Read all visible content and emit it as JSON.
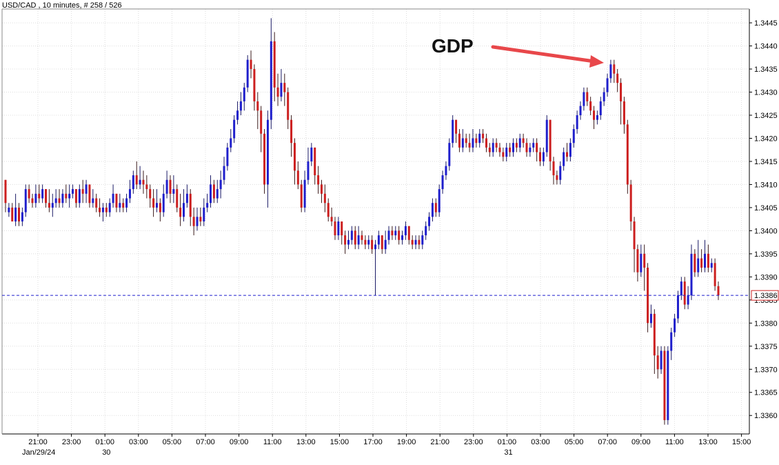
{
  "header": {
    "title": "USD/CAD , 10 minutes, # 258 / 526"
  },
  "annotation": {
    "label": "GDP",
    "arrow_color": "#e8474a"
  },
  "price_label": "1.3386",
  "colors": {
    "up": "#1f1fcc",
    "down": "#cc1f1f",
    "grid": "#dcdcdc",
    "axis": "#000000",
    "current_line": "#1f1fcc",
    "current_label": "#cc1f1f"
  },
  "chart_data": {
    "type": "candlestick",
    "title": "USD/CAD , 10 minutes, # 258 / 526",
    "xlabel": "",
    "ylabel": "",
    "ylim": [
      1.3356,
      1.3448
    ],
    "grid": true,
    "yticks": [
      "1.3445",
      "1.3440",
      "1.3435",
      "1.3430",
      "1.3425",
      "1.3420",
      "1.3415",
      "1.3410",
      "1.3405",
      "1.3400",
      "1.3395",
      "1.3390",
      "1.3385",
      "1.3380",
      "1.3375",
      "1.3370",
      "1.3365",
      "1.3360"
    ],
    "xticks": [
      "21:00",
      "23:00",
      "01:00",
      "03:00",
      "05:00",
      "07:00",
      "09:00",
      "11:00",
      "13:00",
      "15:00",
      "17:00",
      "19:00",
      "21:00",
      "23:00",
      "01:00",
      "03:00",
      "05:00",
      "07:00",
      "09:00",
      "11:00",
      "13:00",
      "15:00"
    ],
    "date_labels": [
      {
        "label": "Jan/29/24",
        "tick_index": 0
      },
      {
        "label": "30",
        "tick_index": 2
      },
      {
        "label": "31",
        "tick_index": 14
      }
    ],
    "current_price": 1.3386,
    "annotations": [
      {
        "text": "GDP",
        "points_to_time": "07:30"
      }
    ],
    "candles": [
      [
        1.3411,
        1.3406,
        1.3411,
        1.3404
      ],
      [
        1.3404,
        1.3405,
        1.3406,
        1.3403
      ],
      [
        1.3405,
        1.3402,
        1.3406,
        1.3402
      ],
      [
        1.3402,
        1.3405,
        1.3408,
        1.3401
      ],
      [
        1.3405,
        1.3402,
        1.3406,
        1.3401
      ],
      [
        1.3402,
        1.3404,
        1.3405,
        1.3401
      ],
      [
        1.3404,
        1.3409,
        1.341,
        1.3403
      ],
      [
        1.3409,
        1.3407,
        1.341,
        1.3406
      ],
      [
        1.3407,
        1.3406,
        1.3408,
        1.3405
      ],
      [
        1.3406,
        1.3408,
        1.341,
        1.3405
      ],
      [
        1.3408,
        1.3407,
        1.341,
        1.3406
      ],
      [
        1.3407,
        1.3409,
        1.341,
        1.3406
      ],
      [
        1.3409,
        1.3406,
        1.3409,
        1.3405
      ],
      [
        1.3406,
        1.3405,
        1.3409,
        1.3404
      ],
      [
        1.3405,
        1.3406,
        1.3408,
        1.3403
      ],
      [
        1.3406,
        1.3407,
        1.3409,
        1.3405
      ],
      [
        1.3407,
        1.3406,
        1.3409,
        1.3405
      ],
      [
        1.3406,
        1.3408,
        1.3409,
        1.3405
      ],
      [
        1.3408,
        1.3407,
        1.341,
        1.3406
      ],
      [
        1.3407,
        1.3408,
        1.341,
        1.3405
      ],
      [
        1.3408,
        1.3409,
        1.341,
        1.3407
      ],
      [
        1.3409,
        1.3406,
        1.3409,
        1.3405
      ],
      [
        1.3406,
        1.3409,
        1.341,
        1.3405
      ],
      [
        1.3409,
        1.3408,
        1.3411,
        1.3406
      ],
      [
        1.3408,
        1.341,
        1.3411,
        1.3406
      ],
      [
        1.341,
        1.3406,
        1.341,
        1.3405
      ],
      [
        1.3406,
        1.3407,
        1.3409,
        1.3405
      ],
      [
        1.3407,
        1.3405,
        1.3408,
        1.3404
      ],
      [
        1.3405,
        1.3404,
        1.3407,
        1.3403
      ],
      [
        1.3404,
        1.3405,
        1.3406,
        1.3402
      ],
      [
        1.3405,
        1.3404,
        1.3406,
        1.3403
      ],
      [
        1.3404,
        1.3406,
        1.3407,
        1.3403
      ],
      [
        1.3406,
        1.3408,
        1.341,
        1.3405
      ],
      [
        1.3408,
        1.3405,
        1.3408,
        1.3404
      ],
      [
        1.3405,
        1.3406,
        1.3408,
        1.3404
      ],
      [
        1.3406,
        1.3405,
        1.3407,
        1.3404
      ],
      [
        1.3405,
        1.3407,
        1.3408,
        1.3404
      ],
      [
        1.3407,
        1.3409,
        1.3411,
        1.3406
      ],
      [
        1.3409,
        1.3412,
        1.3413,
        1.3408
      ],
      [
        1.3412,
        1.341,
        1.3415,
        1.3409
      ],
      [
        1.341,
        1.3411,
        1.3414,
        1.3409
      ],
      [
        1.3411,
        1.341,
        1.3413,
        1.3408
      ],
      [
        1.341,
        1.3409,
        1.3412,
        1.3407
      ],
      [
        1.3409,
        1.3407,
        1.341,
        1.3405
      ],
      [
        1.3407,
        1.3405,
        1.3409,
        1.3403
      ],
      [
        1.3405,
        1.3406,
        1.3409,
        1.3404
      ],
      [
        1.3406,
        1.3404,
        1.3407,
        1.3402
      ],
      [
        1.3404,
        1.3408,
        1.341,
        1.3403
      ],
      [
        1.3408,
        1.3411,
        1.3413,
        1.3407
      ],
      [
        1.3411,
        1.3408,
        1.3412,
        1.3406
      ],
      [
        1.3408,
        1.3409,
        1.3412,
        1.3406
      ],
      [
        1.3409,
        1.3405,
        1.341,
        1.3404
      ],
      [
        1.3405,
        1.3403,
        1.3408,
        1.3401
      ],
      [
        1.3403,
        1.3406,
        1.3409,
        1.3402
      ],
      [
        1.3406,
        1.3408,
        1.341,
        1.3405
      ],
      [
        1.3408,
        1.3403,
        1.3409,
        1.3401
      ],
      [
        1.3403,
        1.3401,
        1.3405,
        1.3399
      ],
      [
        1.3401,
        1.3403,
        1.3405,
        1.34
      ],
      [
        1.3403,
        1.3402,
        1.3405,
        1.3401
      ],
      [
        1.3402,
        1.3405,
        1.3407,
        1.3401
      ],
      [
        1.3405,
        1.3406,
        1.3408,
        1.3404
      ],
      [
        1.3406,
        1.341,
        1.3412,
        1.3405
      ],
      [
        1.341,
        1.3407,
        1.3411,
        1.3406
      ],
      [
        1.3407,
        1.3409,
        1.3411,
        1.3406
      ],
      [
        1.3409,
        1.3411,
        1.3413,
        1.3407
      ],
      [
        1.3411,
        1.3414,
        1.3416,
        1.341
      ],
      [
        1.3414,
        1.3418,
        1.3419,
        1.3413
      ],
      [
        1.3418,
        1.342,
        1.3422,
        1.3417
      ],
      [
        1.342,
        1.3424,
        1.3425,
        1.3419
      ],
      [
        1.3424,
        1.3426,
        1.3428,
        1.3423
      ],
      [
        1.3426,
        1.3428,
        1.343,
        1.3425
      ],
      [
        1.3428,
        1.3431,
        1.3432,
        1.3426
      ],
      [
        1.3431,
        1.3437,
        1.3438,
        1.343
      ],
      [
        1.3437,
        1.3435,
        1.3439,
        1.3433
      ],
      [
        1.3435,
        1.3428,
        1.3436,
        1.3426
      ],
      [
        1.3428,
        1.3426,
        1.343,
        1.3422
      ],
      [
        1.3426,
        1.3421,
        1.3427,
        1.3417
      ],
      [
        1.3421,
        1.341,
        1.3422,
        1.3408
      ],
      [
        1.341,
        1.3424,
        1.3426,
        1.3405
      ],
      [
        1.3424,
        1.3441,
        1.3446,
        1.3422
      ],
      [
        1.3441,
        1.3431,
        1.3443,
        1.3428
      ],
      [
        1.3431,
        1.3429,
        1.3434,
        1.3427
      ],
      [
        1.3429,
        1.3432,
        1.3435,
        1.3428
      ],
      [
        1.3432,
        1.343,
        1.3434,
        1.3427
      ],
      [
        1.343,
        1.3424,
        1.3431,
        1.3422
      ],
      [
        1.3424,
        1.3419,
        1.3425,
        1.3416
      ],
      [
        1.3419,
        1.3413,
        1.342,
        1.341
      ],
      [
        1.3413,
        1.341,
        1.3415,
        1.3409
      ],
      [
        1.341,
        1.3405,
        1.3411,
        1.3404
      ],
      [
        1.3405,
        1.3411,
        1.3413,
        1.3404
      ],
      [
        1.3411,
        1.3415,
        1.3418,
        1.341
      ],
      [
        1.3415,
        1.3418,
        1.3419,
        1.3414
      ],
      [
        1.3418,
        1.3412,
        1.3418,
        1.341
      ],
      [
        1.3412,
        1.341,
        1.3414,
        1.3408
      ],
      [
        1.341,
        1.3408,
        1.3411,
        1.3406
      ],
      [
        1.3408,
        1.3406,
        1.341,
        1.3404
      ],
      [
        1.3406,
        1.3403,
        1.3407,
        1.3402
      ],
      [
        1.3403,
        1.3402,
        1.3405,
        1.3401
      ],
      [
        1.3402,
        1.3399,
        1.3403,
        1.3398
      ],
      [
        1.3399,
        1.3402,
        1.3403,
        1.3398
      ],
      [
        1.3402,
        1.3399,
        1.3402,
        1.3397
      ],
      [
        1.3399,
        1.3397,
        1.34,
        1.3395
      ],
      [
        1.3397,
        1.3398,
        1.34,
        1.3396
      ],
      [
        1.3398,
        1.34,
        1.3401,
        1.3397
      ],
      [
        1.34,
        1.3397,
        1.3401,
        1.3396
      ],
      [
        1.3397,
        1.3399,
        1.3401,
        1.3396
      ],
      [
        1.3399,
        1.3398,
        1.34,
        1.3397
      ],
      [
        1.3398,
        1.3397,
        1.3399,
        1.3396
      ],
      [
        1.3397,
        1.3398,
        1.3399,
        1.3396
      ],
      [
        1.3398,
        1.3396,
        1.3399,
        1.3395
      ],
      [
        1.3396,
        1.3397,
        1.3398,
        1.3386
      ],
      [
        1.3397,
        1.3399,
        1.34,
        1.3396
      ],
      [
        1.3399,
        1.3396,
        1.3399,
        1.3395
      ],
      [
        1.3396,
        1.3398,
        1.34,
        1.3395
      ],
      [
        1.3398,
        1.34,
        1.3401,
        1.3397
      ],
      [
        1.34,
        1.3399,
        1.3401,
        1.3398
      ],
      [
        1.3399,
        1.34,
        1.3401,
        1.3398
      ],
      [
        1.34,
        1.3398,
        1.3401,
        1.3397
      ],
      [
        1.3398,
        1.3399,
        1.34,
        1.3397
      ],
      [
        1.3399,
        1.3401,
        1.3402,
        1.3398
      ],
      [
        1.3401,
        1.3398,
        1.3401,
        1.3397
      ],
      [
        1.3398,
        1.3397,
        1.3399,
        1.3396
      ],
      [
        1.3397,
        1.3398,
        1.3399,
        1.3396
      ],
      [
        1.3398,
        1.3397,
        1.3399,
        1.3396
      ],
      [
        1.3397,
        1.3399,
        1.34,
        1.3396
      ],
      [
        1.3399,
        1.3401,
        1.3402,
        1.3398
      ],
      [
        1.3401,
        1.3403,
        1.3404,
        1.34
      ],
      [
        1.3403,
        1.3406,
        1.3407,
        1.3402
      ],
      [
        1.3406,
        1.3404,
        1.3407,
        1.3403
      ],
      [
        1.3404,
        1.3409,
        1.341,
        1.3403
      ],
      [
        1.3409,
        1.3412,
        1.3413,
        1.3408
      ],
      [
        1.3412,
        1.3414,
        1.3415,
        1.3411
      ],
      [
        1.3414,
        1.3419,
        1.342,
        1.3413
      ],
      [
        1.3419,
        1.3424,
        1.3425,
        1.3418
      ],
      [
        1.3424,
        1.3421,
        1.3424,
        1.3419
      ],
      [
        1.3421,
        1.3418,
        1.3422,
        1.3417
      ],
      [
        1.3418,
        1.342,
        1.3422,
        1.3417
      ],
      [
        1.342,
        1.3419,
        1.3421,
        1.3418
      ],
      [
        1.3419,
        1.3418,
        1.3421,
        1.3417
      ],
      [
        1.3418,
        1.342,
        1.3422,
        1.3417
      ],
      [
        1.342,
        1.3419,
        1.3421,
        1.3418
      ],
      [
        1.3419,
        1.3421,
        1.3422,
        1.3418
      ],
      [
        1.3421,
        1.342,
        1.3422,
        1.3419
      ],
      [
        1.342,
        1.3418,
        1.3421,
        1.3417
      ],
      [
        1.3418,
        1.3417,
        1.3419,
        1.3416
      ],
      [
        1.3417,
        1.3419,
        1.342,
        1.3416
      ],
      [
        1.3419,
        1.3418,
        1.342,
        1.3417
      ],
      [
        1.3418,
        1.3417,
        1.3419,
        1.3416
      ],
      [
        1.3417,
        1.3416,
        1.3418,
        1.3415
      ],
      [
        1.3416,
        1.3418,
        1.3419,
        1.3415
      ],
      [
        1.3418,
        1.3417,
        1.3419,
        1.3416
      ],
      [
        1.3417,
        1.3419,
        1.342,
        1.3416
      ],
      [
        1.3419,
        1.3418,
        1.342,
        1.3417
      ],
      [
        1.3418,
        1.342,
        1.3421,
        1.3417
      ],
      [
        1.342,
        1.3419,
        1.3421,
        1.3418
      ],
      [
        1.3419,
        1.3417,
        1.342,
        1.3416
      ],
      [
        1.3417,
        1.3418,
        1.3419,
        1.3416
      ],
      [
        1.3418,
        1.3419,
        1.342,
        1.3417
      ],
      [
        1.3419,
        1.3417,
        1.342,
        1.3415
      ],
      [
        1.3417,
        1.3415,
        1.3418,
        1.3414
      ],
      [
        1.3415,
        1.3417,
        1.3418,
        1.3414
      ],
      [
        1.3417,
        1.3424,
        1.3425,
        1.3416
      ],
      [
        1.3424,
        1.3415,
        1.3424,
        1.3413
      ],
      [
        1.3415,
        1.3412,
        1.3416,
        1.341
      ],
      [
        1.3412,
        1.3411,
        1.3413,
        1.341
      ],
      [
        1.3411,
        1.3414,
        1.3415,
        1.341
      ],
      [
        1.3414,
        1.3417,
        1.3418,
        1.3413
      ],
      [
        1.3417,
        1.3416,
        1.3419,
        1.3415
      ],
      [
        1.3416,
        1.3419,
        1.342,
        1.3415
      ],
      [
        1.3419,
        1.3422,
        1.3423,
        1.3418
      ],
      [
        1.3422,
        1.3425,
        1.3426,
        1.3421
      ],
      [
        1.3425,
        1.3427,
        1.3428,
        1.3424
      ],
      [
        1.3427,
        1.343,
        1.3431,
        1.3426
      ],
      [
        1.343,
        1.3428,
        1.3431,
        1.3427
      ],
      [
        1.3428,
        1.3426,
        1.3429,
        1.3425
      ],
      [
        1.3426,
        1.3424,
        1.3427,
        1.3422
      ],
      [
        1.3424,
        1.3425,
        1.3426,
        1.3423
      ],
      [
        1.3425,
        1.3428,
        1.3429,
        1.3424
      ],
      [
        1.3428,
        1.343,
        1.3431,
        1.3427
      ],
      [
        1.343,
        1.3433,
        1.3434,
        1.3429
      ],
      [
        1.3433,
        1.3436,
        1.3437,
        1.3432
      ],
      [
        1.3436,
        1.3434,
        1.3437,
        1.3432
      ],
      [
        1.3434,
        1.3432,
        1.3435,
        1.343
      ],
      [
        1.3432,
        1.3428,
        1.3433,
        1.3423
      ],
      [
        1.3428,
        1.3423,
        1.3429,
        1.3421
      ],
      [
        1.3423,
        1.341,
        1.3424,
        1.3408
      ],
      [
        1.341,
        1.3402,
        1.3411,
        1.34
      ],
      [
        1.3402,
        1.3396,
        1.3403,
        1.3391
      ],
      [
        1.3396,
        1.3391,
        1.3397,
        1.3389
      ],
      [
        1.3391,
        1.3395,
        1.3397,
        1.339
      ],
      [
        1.3395,
        1.3392,
        1.3397,
        1.3387
      ],
      [
        1.3392,
        1.338,
        1.3393,
        1.3378
      ],
      [
        1.338,
        1.3382,
        1.3384,
        1.3379
      ],
      [
        1.3382,
        1.3373,
        1.3383,
        1.3369
      ],
      [
        1.3373,
        1.337,
        1.3375,
        1.3368
      ],
      [
        1.337,
        1.3374,
        1.3375,
        1.3369
      ],
      [
        1.3374,
        1.3359,
        1.3375,
        1.3358
      ],
      [
        1.3359,
        1.3374,
        1.3375,
        1.3358
      ],
      [
        1.3374,
        1.3378,
        1.3379,
        1.3372
      ],
      [
        1.3378,
        1.3381,
        1.3382,
        1.3377
      ],
      [
        1.3381,
        1.3386,
        1.3387,
        1.338
      ],
      [
        1.3386,
        1.3389,
        1.339,
        1.3385
      ],
      [
        1.3389,
        1.3384,
        1.339,
        1.3383
      ],
      [
        1.3384,
        1.3386,
        1.3388,
        1.3383
      ],
      [
        1.3386,
        1.3395,
        1.3397,
        1.3385
      ],
      [
        1.3395,
        1.3391,
        1.3396,
        1.339
      ],
      [
        1.3391,
        1.3394,
        1.3398,
        1.339
      ],
      [
        1.3394,
        1.3392,
        1.3396,
        1.3391
      ],
      [
        1.3392,
        1.3395,
        1.3398,
        1.3391
      ],
      [
        1.3395,
        1.3392,
        1.3397,
        1.3391
      ],
      [
        1.3392,
        1.3393,
        1.3394,
        1.3391
      ],
      [
        1.3393,
        1.3388,
        1.3394,
        1.3387
      ],
      [
        1.3388,
        1.3386,
        1.3389,
        1.3385
      ]
    ]
  }
}
